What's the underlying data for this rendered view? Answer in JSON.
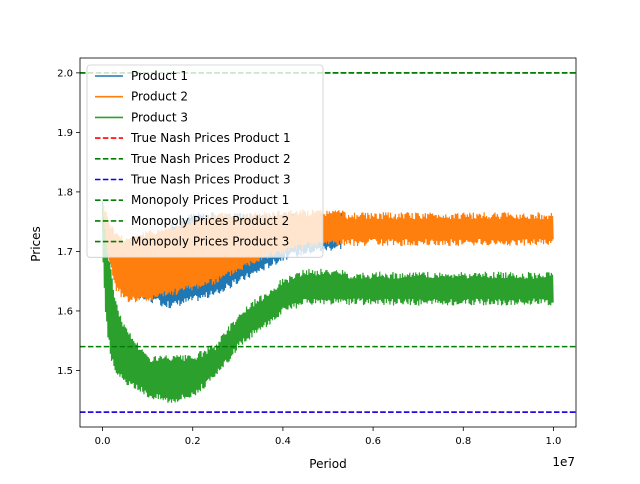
{
  "chart_data": {
    "type": "line",
    "title": "",
    "xlabel": "Period",
    "ylabel": "Prices",
    "x_offset_label": "1e7",
    "xlim": [
      -0.05,
      1.05
    ],
    "ylim": [
      1.405,
      2.025
    ],
    "x_ticks": [
      0.0,
      0.2,
      0.4,
      0.6,
      0.8,
      1.0
    ],
    "x_tick_labels": [
      "0.0",
      "0.2",
      "0.4",
      "0.6",
      "0.8",
      "1.0"
    ],
    "y_ticks": [
      1.5,
      1.6,
      1.7,
      1.8,
      1.9,
      2.0
    ],
    "y_tick_labels": [
      "1.5",
      "1.6",
      "1.7",
      "1.8",
      "1.9",
      "2.0"
    ],
    "grid": false,
    "legend_position": "upper-left",
    "series": [
      {
        "name": "Product 1",
        "color": "#1f77b4",
        "style": "solid",
        "x": [
          0.0,
          0.01,
          0.02,
          0.03,
          0.05,
          0.1,
          0.15,
          0.2,
          0.25,
          0.3,
          0.35,
          0.4,
          0.45,
          0.53
        ],
        "upper": [
          1.78,
          1.74,
          1.72,
          1.71,
          1.69,
          1.68,
          1.74,
          1.76,
          1.76,
          1.76,
          1.76,
          1.76,
          1.76,
          1.76
        ],
        "lower": [
          1.72,
          1.7,
          1.68,
          1.66,
          1.63,
          1.62,
          1.61,
          1.62,
          1.63,
          1.65,
          1.67,
          1.69,
          1.7,
          1.71
        ]
      },
      {
        "name": "Product 2",
        "color": "#ff7f0e",
        "style": "solid",
        "x": [
          0.0,
          0.01,
          0.02,
          0.03,
          0.05,
          0.1,
          0.15,
          0.2,
          0.25,
          0.3,
          0.35,
          0.4,
          0.45,
          0.5,
          0.53,
          0.54,
          1.0
        ],
        "upper": [
          1.78,
          1.76,
          1.74,
          1.73,
          1.72,
          1.73,
          1.74,
          1.75,
          1.76,
          1.76,
          1.76,
          1.765,
          1.765,
          1.765,
          1.765,
          1.76,
          1.76
        ],
        "lower": [
          1.72,
          1.7,
          1.67,
          1.64,
          1.62,
          1.62,
          1.63,
          1.64,
          1.65,
          1.67,
          1.69,
          1.7,
          1.71,
          1.715,
          1.715,
          1.715,
          1.715
        ]
      },
      {
        "name": "Product 3",
        "color": "#2ca02c",
        "style": "solid",
        "x": [
          0.0,
          0.005,
          0.01,
          0.02,
          0.03,
          0.05,
          0.08,
          0.1,
          0.15,
          0.2,
          0.25,
          0.28,
          0.3,
          0.33,
          0.35,
          0.4,
          0.45,
          0.5,
          0.53,
          0.54,
          1.0
        ],
        "upper": [
          1.78,
          1.74,
          1.7,
          1.66,
          1.61,
          1.57,
          1.54,
          1.52,
          1.52,
          1.52,
          1.54,
          1.57,
          1.59,
          1.61,
          1.62,
          1.65,
          1.665,
          1.665,
          1.665,
          1.66,
          1.66
        ],
        "lower": [
          1.7,
          1.62,
          1.57,
          1.52,
          1.5,
          1.48,
          1.47,
          1.46,
          1.45,
          1.46,
          1.49,
          1.52,
          1.54,
          1.56,
          1.57,
          1.6,
          1.615,
          1.615,
          1.615,
          1.615,
          1.615
        ]
      }
    ],
    "reference_lines": [
      {
        "name": "True Nash Prices Product 1",
        "value": 1.43,
        "color": "#ff0000",
        "style": "dashed"
      },
      {
        "name": "True Nash Prices Product 2",
        "value": 1.54,
        "color": "#008000",
        "style": "dashed"
      },
      {
        "name": "True Nash Prices Product 3",
        "value": 1.43,
        "color": "#0000ff",
        "style": "dashed"
      },
      {
        "name": "Monopoly Prices Product 1",
        "value": 2.0,
        "color": "#008000",
        "style": "dashed"
      },
      {
        "name": "Monopoly Prices Product 2",
        "value": 2.0,
        "color": "#008000",
        "style": "dashed"
      },
      {
        "name": "Monopoly Prices Product 3",
        "value": 2.0,
        "color": "#008000",
        "style": "dashed"
      }
    ]
  }
}
